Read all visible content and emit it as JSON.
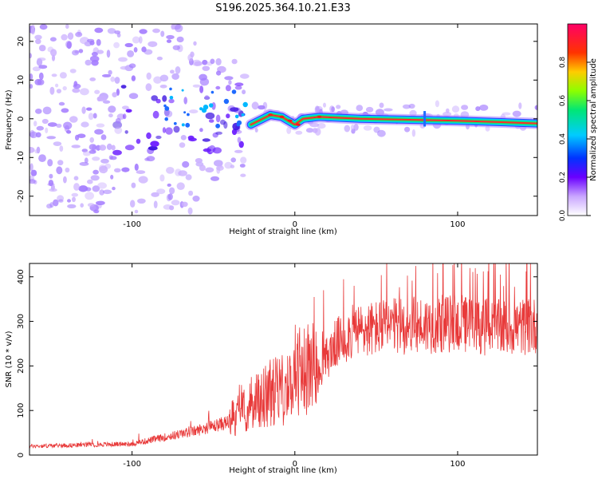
{
  "title": "S196.2025.364.10.21.E33",
  "chart_data": [
    {
      "type": "heatmap",
      "name": "spectrogram",
      "xlabel": "Height of straight line (km)",
      "ylabel": "Frequency (Hz)",
      "xlim": [
        -163,
        149
      ],
      "ylim": [
        -25,
        24.5
      ],
      "xticks": [
        -100,
        0,
        100
      ],
      "yticks": [
        -20,
        -10,
        0,
        10,
        20
      ],
      "colorbar": {
        "label": "Normalized spectral amplitude",
        "range": [
          0,
          1
        ],
        "ticks": [
          0,
          0.2,
          0.4,
          0.6,
          0.8
        ],
        "tick_labels": [
          "0.0",
          "0.2",
          "0.4",
          "0.6",
          "0.8"
        ]
      },
      "ridge": {
        "description": "narrow high-amplitude line near 0 Hz from about -25 km to 149 km",
        "points_km": [
          [
            -27,
            -1.5
          ],
          [
            -15,
            1
          ],
          [
            -8,
            0.5
          ],
          [
            0,
            -1.5
          ],
          [
            5,
            0
          ],
          [
            15,
            0.5
          ],
          [
            40,
            0
          ],
          [
            100,
            -0.5
          ],
          [
            149,
            -1.2
          ]
        ]
      }
    },
    {
      "type": "line",
      "name": "snr",
      "xlabel": "Height of straight line (km)",
      "ylabel": "SNR (10 * v/v)",
      "xlim": [
        -163,
        149
      ],
      "ylim": [
        0,
        430
      ],
      "xticks": [
        -100,
        0,
        100
      ],
      "yticks": [
        0,
        100,
        200,
        300,
        400
      ],
      "color": "#e83a3a",
      "trend_points": [
        [
          -163,
          20
        ],
        [
          -100,
          25
        ],
        [
          -80,
          40
        ],
        [
          -60,
          55
        ],
        [
          -40,
          75
        ],
        [
          -30,
          100
        ],
        [
          -20,
          130
        ],
        [
          -10,
          150
        ],
        [
          -5,
          140
        ],
        [
          0,
          180
        ],
        [
          10,
          200
        ],
        [
          15,
          190
        ],
        [
          25,
          250
        ],
        [
          35,
          275
        ],
        [
          50,
          285
        ],
        [
          70,
          290
        ],
        [
          100,
          295
        ],
        [
          125,
          285
        ],
        [
          149,
          290
        ]
      ]
    }
  ]
}
